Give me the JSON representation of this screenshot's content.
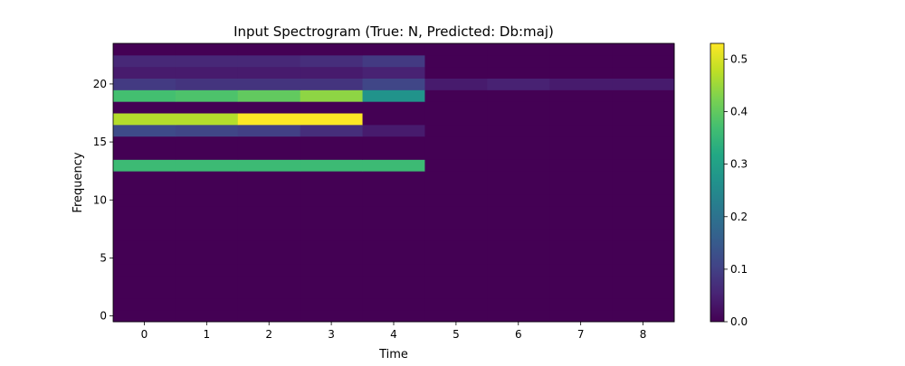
{
  "chart_data": {
    "type": "heatmap",
    "title": "Input Spectrogram (True: N, Predicted: Db:maj)",
    "xlabel": "Time",
    "ylabel": "Frequency",
    "x_ticks": [
      0,
      1,
      2,
      3,
      4,
      5,
      6,
      7,
      8
    ],
    "y_ticks": [
      0,
      5,
      10,
      15,
      20
    ],
    "xlim": [
      -0.5,
      8.5
    ],
    "ylim": [
      -0.5,
      23.5
    ],
    "colormap": "viridis",
    "vmin": 0.0,
    "vmax": 0.53,
    "colorbar_ticks": [
      0.0,
      0.1,
      0.2,
      0.3,
      0.4,
      0.5
    ],
    "colorbar_tick_labels": [
      "0.0",
      "0.1",
      "0.2",
      "0.3",
      "0.4",
      "0.5"
    ],
    "x_tick_labels": [
      "0",
      "1",
      "2",
      "3",
      "4",
      "5",
      "6",
      "7",
      "8"
    ],
    "y_tick_labels": [
      "0",
      "5",
      "10",
      "15",
      "20"
    ],
    "values": [
      [
        0,
        0,
        0,
        0,
        0,
        0,
        0,
        0,
        0
      ],
      [
        0,
        0,
        0,
        0,
        0,
        0,
        0,
        0,
        0
      ],
      [
        0,
        0,
        0,
        0,
        0,
        0,
        0,
        0,
        0
      ],
      [
        0,
        0,
        0,
        0,
        0,
        0,
        0,
        0,
        0
      ],
      [
        0,
        0,
        0,
        0,
        0,
        0,
        0,
        0,
        0
      ],
      [
        0,
        0,
        0,
        0,
        0,
        0,
        0,
        0,
        0
      ],
      [
        0,
        0,
        0,
        0,
        0,
        0,
        0,
        0,
        0
      ],
      [
        0,
        0,
        0,
        0,
        0,
        0,
        0,
        0,
        0
      ],
      [
        0,
        0,
        0,
        0,
        0,
        0,
        0,
        0,
        0
      ],
      [
        0,
        0,
        0,
        0,
        0,
        0,
        0,
        0,
        0
      ],
      [
        0,
        0,
        0,
        0,
        0,
        0,
        0,
        0,
        0
      ],
      [
        0,
        0,
        0,
        0,
        0,
        0,
        0,
        0,
        0
      ],
      [
        0,
        0,
        0,
        0,
        0,
        0,
        0,
        0,
        0
      ],
      [
        0.36,
        0.36,
        0.36,
        0.36,
        0.36,
        0,
        0,
        0,
        0
      ],
      [
        0,
        0,
        0,
        0,
        0,
        0,
        0,
        0,
        0
      ],
      [
        0,
        0,
        0,
        0,
        0,
        0,
        0,
        0,
        0
      ],
      [
        0.12,
        0.11,
        0.1,
        0.07,
        0.04,
        0,
        0,
        0,
        0
      ],
      [
        0.47,
        0.47,
        0.53,
        0.53,
        0,
        0,
        0,
        0,
        0
      ],
      [
        0,
        0,
        0,
        0,
        0,
        0,
        0,
        0,
        0
      ],
      [
        0.37,
        0.38,
        0.4,
        0.44,
        0.27,
        0,
        0,
        0,
        0
      ],
      [
        0.09,
        0.08,
        0.08,
        0.08,
        0.11,
        0.04,
        0.05,
        0.04,
        0.04
      ],
      [
        0.04,
        0.04,
        0.04,
        0.04,
        0.05,
        0,
        0,
        0,
        0
      ],
      [
        0.06,
        0.06,
        0.06,
        0.07,
        0.09,
        0,
        0,
        0,
        0
      ],
      [
        0,
        0,
        0,
        0,
        0,
        0,
        0,
        0,
        0
      ]
    ]
  }
}
